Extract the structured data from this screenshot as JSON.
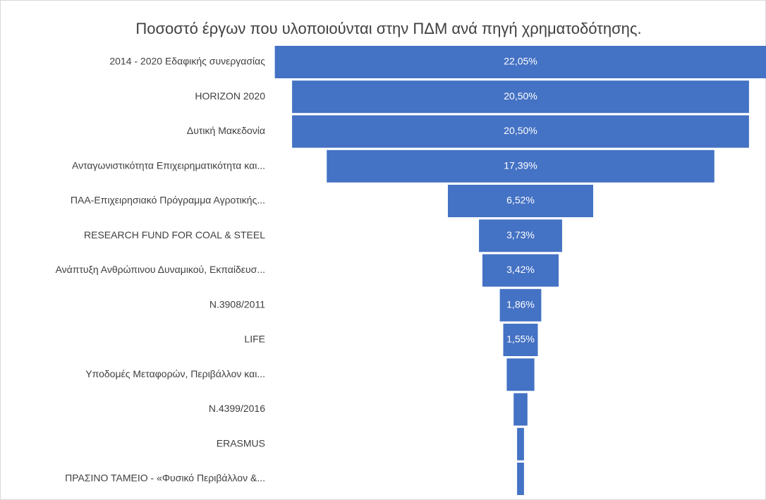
{
  "chart_data": {
    "type": "funnel",
    "title": "Ποσοστό έργων που υλοποιούνται στην ΠΔΜ ανά πηγή χρηματοδότησης.",
    "categories": [
      "2014 - 2020  Εδαφικής συνεργασίας",
      "HORIZON 2020",
      "Δυτική Μακεδονία",
      "Ανταγωνιστικότητα Επιχειρηματικότητα και...",
      "ΠΑΑ-Επιχειρησιακό Πρόγραμμα Αγροτικής...",
      "RESEARCH FUND FOR COAL & STEEL",
      "Ανάπτυξη Ανθρώπινου Δυναμικού, Εκπαίδευσ...",
      "Ν.3908/2011",
      "LIFE",
      "Υποδομές Μεταφορών, Περιβάλλον και...",
      "Ν.4399/2016",
      "ERASMUS",
      "ΠΡΑΣΙΝΟ ΤΑΜΕΙΟ - «Φυσικό Περιβάλλον &..."
    ],
    "values": [
      22.05,
      20.5,
      20.5,
      17.39,
      6.52,
      3.73,
      3.42,
      1.86,
      1.55,
      1.24,
      0.62,
      0.31,
      0.31
    ],
    "value_labels": [
      "22,05%",
      "20,50%",
      "20,50%",
      "17,39%",
      "6,52%",
      "3,73%",
      "3,42%",
      "1,86%",
      "1,55%",
      null,
      null,
      null,
      null
    ],
    "color": "#4472c4"
  }
}
